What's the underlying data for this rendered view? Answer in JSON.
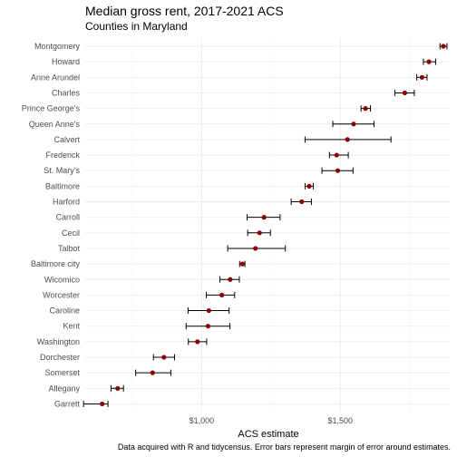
{
  "chart_data": {
    "type": "scatter",
    "title": "Median gross rent, 2017-2021 ACS",
    "subtitle": "Counties in Maryland",
    "xlabel": "ACS estimate",
    "ylabel": "",
    "caption": "Data acquired with R and tidycensus. Error bars represent margin of error around estimates.",
    "xlim": [
      580,
      1895
    ],
    "x_ticks": [
      1000,
      1500
    ],
    "x_tick_labels": [
      "$1,000",
      "$1,500"
    ],
    "grid": true,
    "point_color": "#8b0000",
    "errorbar_color": "#000000",
    "categories": [
      "Montgomery",
      "Howard",
      "Anne Arundel",
      "Charles",
      "Prince George's",
      "Queen Anne's",
      "Calvert",
      "Frederick",
      "St. Mary's",
      "Baltimore",
      "Harford",
      "Carroll",
      "Cecil",
      "Talbot",
      "Baltimore city",
      "Wicomico",
      "Worcester",
      "Caroline",
      "Kent",
      "Washington",
      "Dorchester",
      "Somerset",
      "Allegany",
      "Garrett"
    ],
    "estimate": [
      1872,
      1820,
      1795,
      1733,
      1591,
      1548,
      1526,
      1487,
      1491,
      1388,
      1361,
      1225,
      1209,
      1194,
      1147,
      1103,
      1073,
      1026,
      1023,
      985,
      864,
      823,
      697,
      641
    ],
    "moe_low": [
      1860,
      1800,
      1776,
      1697,
      1575,
      1473,
      1373,
      1461,
      1434,
      1373,
      1323,
      1164,
      1166,
      1094,
      1137,
      1066,
      1017,
      951,
      944,
      952,
      826,
      762,
      673,
      574
    ],
    "moe_high": [
      1885,
      1844,
      1813,
      1767,
      1609,
      1622,
      1683,
      1529,
      1546,
      1403,
      1396,
      1283,
      1248,
      1302,
      1156,
      1136,
      1119,
      1099,
      1102,
      1018,
      902,
      889,
      718,
      662
    ]
  }
}
